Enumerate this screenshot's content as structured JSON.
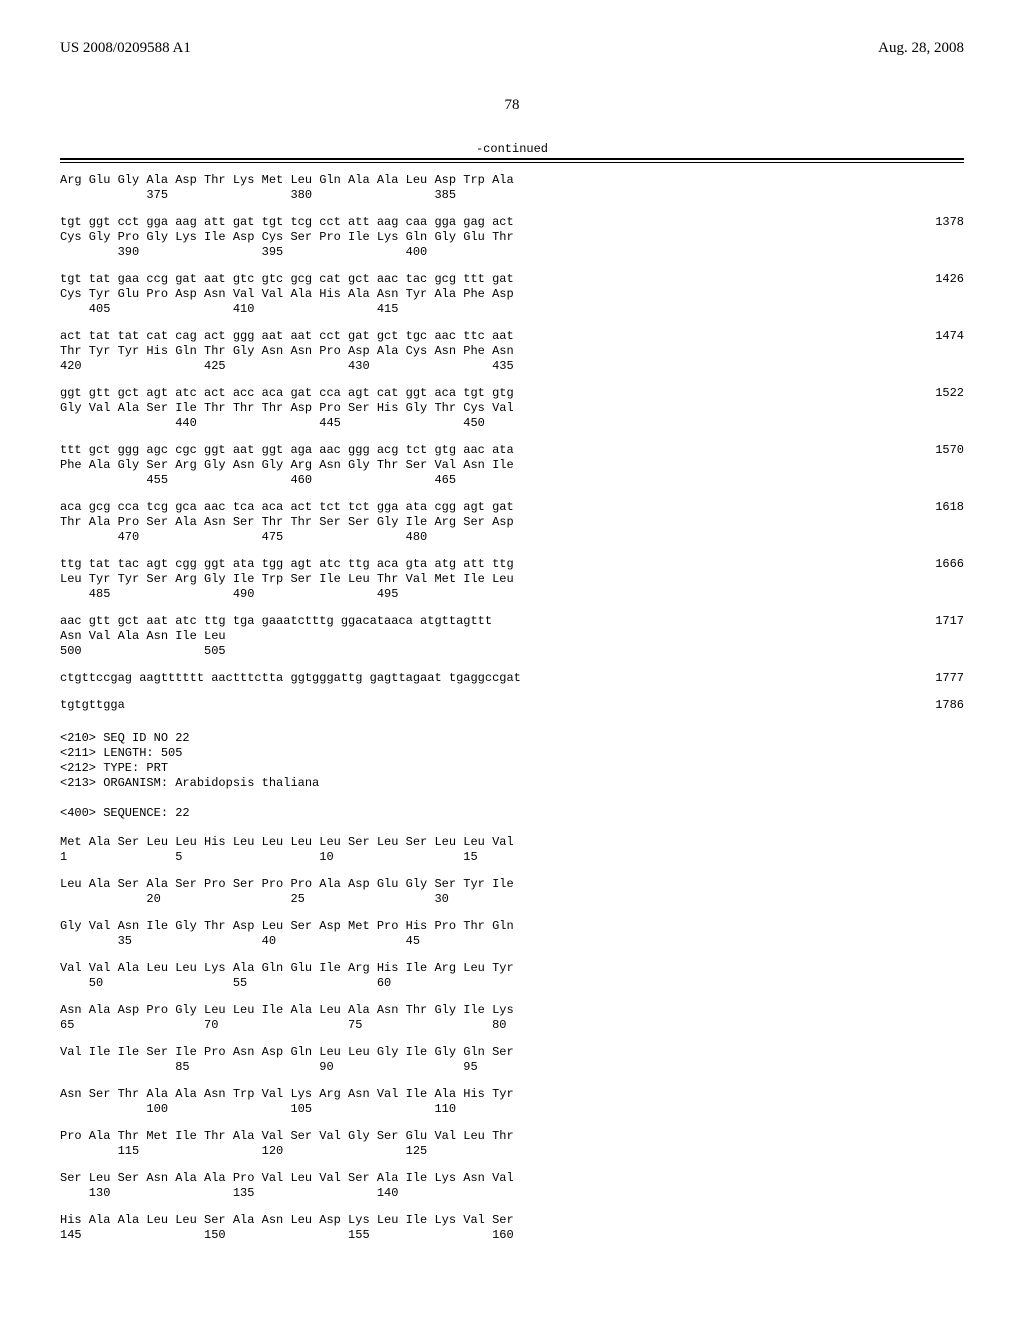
{
  "header": {
    "left": "US 2008/0209588 A1",
    "right": "Aug. 28, 2008"
  },
  "page_number": "78",
  "continued_label": "-continued",
  "blocks": [
    {
      "lines": [
        "Arg Glu Gly Ala Asp Thr Lys Met Leu Gln Ala Ala Leu Asp Trp Ala",
        "            375                 380                 385"
      ]
    },
    {
      "lines": [
        "tgt ggt cct gga aag att gat tgt tcg cct att aag caa gga gag act",
        "Cys Gly Pro Gly Lys Ile Asp Cys Ser Pro Ile Lys Gln Gly Glu Thr",
        "        390                 395                 400"
      ],
      "num": "1378"
    },
    {
      "lines": [
        "tgt tat gaa ccg gat aat gtc gtc gcg cat gct aac tac gcg ttt gat",
        "Cys Tyr Glu Pro Asp Asn Val Val Ala His Ala Asn Tyr Ala Phe Asp",
        "    405                 410                 415"
      ],
      "num": "1426"
    },
    {
      "lines": [
        "act tat tat cat cag act ggg aat aat cct gat gct tgc aac ttc aat",
        "Thr Tyr Tyr His Gln Thr Gly Asn Asn Pro Asp Ala Cys Asn Phe Asn",
        "420                 425                 430                 435"
      ],
      "num": "1474"
    },
    {
      "lines": [
        "ggt gtt gct agt atc act acc aca gat cca agt cat ggt aca tgt gtg",
        "Gly Val Ala Ser Ile Thr Thr Thr Asp Pro Ser His Gly Thr Cys Val",
        "                440                 445                 450"
      ],
      "num": "1522"
    },
    {
      "lines": [
        "ttt gct ggg agc cgc ggt aat ggt aga aac ggg acg tct gtg aac ata",
        "Phe Ala Gly Ser Arg Gly Asn Gly Arg Asn Gly Thr Ser Val Asn Ile",
        "            455                 460                 465"
      ],
      "num": "1570"
    },
    {
      "lines": [
        "aca gcg cca tcg gca aac tca aca act tct tct gga ata cgg agt gat",
        "Thr Ala Pro Ser Ala Asn Ser Thr Thr Ser Ser Gly Ile Arg Ser Asp",
        "        470                 475                 480"
      ],
      "num": "1618"
    },
    {
      "lines": [
        "ttg tat tac agt cgg ggt ata tgg agt atc ttg aca gta atg att ttg",
        "Leu Tyr Tyr Ser Arg Gly Ile Trp Ser Ile Leu Thr Val Met Ile Leu",
        "    485                 490                 495"
      ],
      "num": "1666"
    },
    {
      "lines": [
        "aac gtt gct aat atc ttg tga gaaatctttg ggacataaca atgttagttt",
        "Asn Val Ala Asn Ile Leu",
        "500                 505"
      ],
      "num": "1717"
    },
    {
      "lines": [
        "ctgttccgag aagtttttt aactttctta ggtgggattg gagttagaat tgaggccgat"
      ],
      "num": "1777"
    },
    {
      "lines": [
        "tgtgttgga"
      ],
      "num": "1786"
    }
  ],
  "meta": [
    "<210> SEQ ID NO 22",
    "<211> LENGTH: 505",
    "<212> TYPE: PRT",
    "<213> ORGANISM: Arabidopsis thaliana",
    "",
    "<400> SEQUENCE: 22"
  ],
  "blocks2": [
    {
      "lines": [
        "Met Ala Ser Leu Leu His Leu Leu Leu Leu Ser Leu Ser Leu Leu Val",
        "1               5                   10                  15"
      ]
    },
    {
      "lines": [
        "Leu Ala Ser Ala Ser Pro Ser Pro Pro Ala Asp Glu Gly Ser Tyr Ile",
        "            20                  25                  30"
      ]
    },
    {
      "lines": [
        "Gly Val Asn Ile Gly Thr Asp Leu Ser Asp Met Pro His Pro Thr Gln",
        "        35                  40                  45"
      ]
    },
    {
      "lines": [
        "Val Val Ala Leu Leu Lys Ala Gln Glu Ile Arg His Ile Arg Leu Tyr",
        "    50                  55                  60"
      ]
    },
    {
      "lines": [
        "Asn Ala Asp Pro Gly Leu Leu Ile Ala Leu Ala Asn Thr Gly Ile Lys",
        "65                  70                  75                  80"
      ]
    },
    {
      "lines": [
        "Val Ile Ile Ser Ile Pro Asn Asp Gln Leu Leu Gly Ile Gly Gln Ser",
        "                85                  90                  95"
      ]
    },
    {
      "lines": [
        "Asn Ser Thr Ala Ala Asn Trp Val Lys Arg Asn Val Ile Ala His Tyr",
        "            100                 105                 110"
      ]
    },
    {
      "lines": [
        "Pro Ala Thr Met Ile Thr Ala Val Ser Val Gly Ser Glu Val Leu Thr",
        "        115                 120                 125"
      ]
    },
    {
      "lines": [
        "Ser Leu Ser Asn Ala Ala Pro Val Leu Val Ser Ala Ile Lys Asn Val",
        "    130                 135                 140"
      ]
    },
    {
      "lines": [
        "His Ala Ala Leu Leu Ser Ala Asn Leu Asp Lys Leu Ile Lys Val Ser",
        "145                 150                 155                 160"
      ]
    }
  ]
}
